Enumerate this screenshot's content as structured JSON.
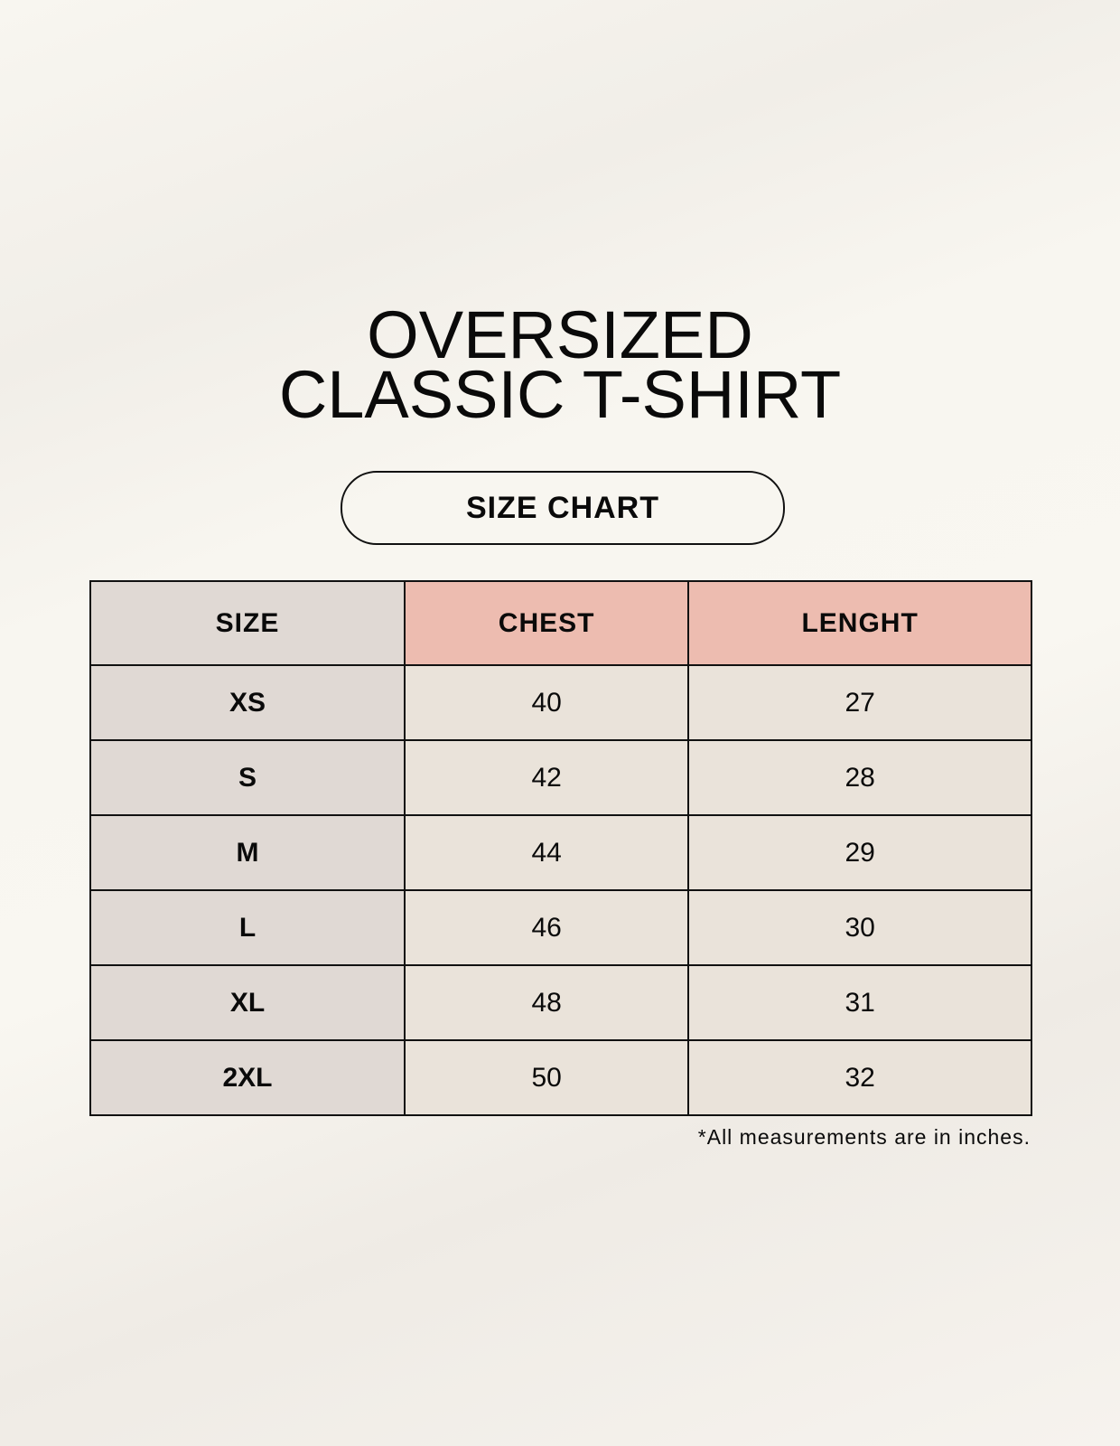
{
  "title": {
    "line1": "OVERSIZED",
    "line2": "CLASSIC T-SHIRT"
  },
  "badge": "SIZE CHART",
  "table": {
    "headers": [
      "SIZE",
      "CHEST",
      "LENGHT"
    ],
    "rows": [
      [
        "XS",
        "40",
        "27"
      ],
      [
        "S",
        "42",
        "28"
      ],
      [
        "M",
        "44",
        "29"
      ],
      [
        "L",
        "46",
        "30"
      ],
      [
        "XL",
        "48",
        "31"
      ],
      [
        "2XL",
        "50",
        "32"
      ]
    ]
  },
  "footnote": "*All measurements are in inches.",
  "colors": {
    "header_accent": "#edbcb0",
    "size_column": "#e0d9d4",
    "cell": "#eae3da"
  }
}
